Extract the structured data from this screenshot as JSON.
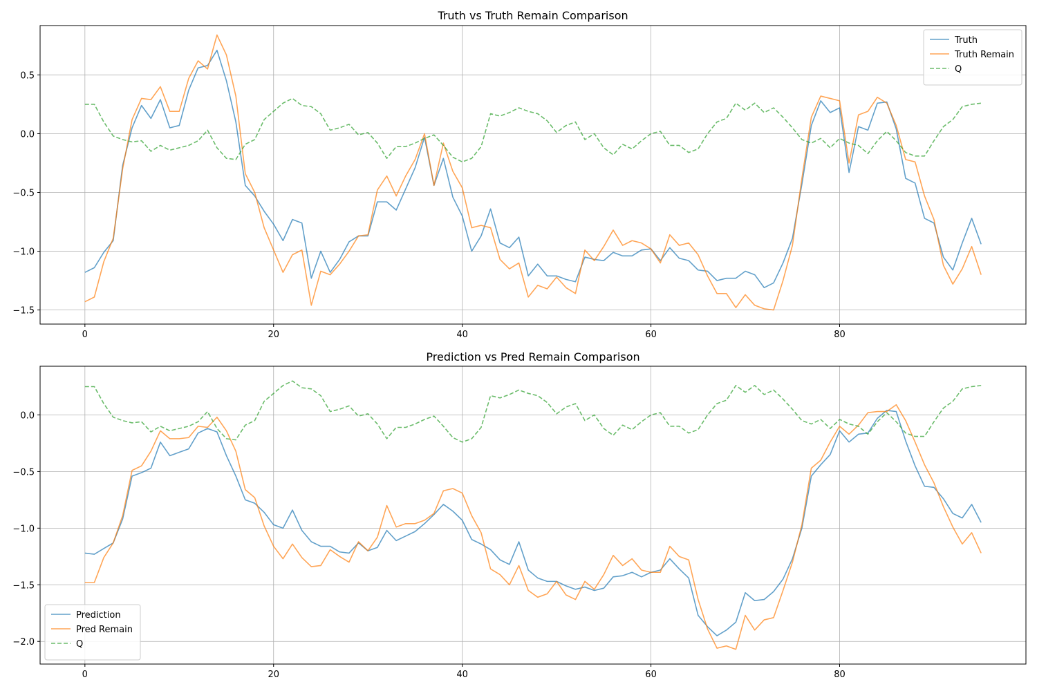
{
  "chart_data": [
    {
      "type": "line",
      "title": "Truth vs Truth Remain Comparison",
      "xlabel": "",
      "ylabel": "",
      "xlim": [
        -4.75,
        99.75
      ],
      "ylim": [
        -1.62,
        0.92
      ],
      "xticks": [
        0,
        20,
        40,
        60,
        80
      ],
      "yticks": [
        -1.5,
        -1.0,
        -0.5,
        0.0,
        0.5
      ],
      "grid": true,
      "legend_position": "upper-right",
      "series": [
        {
          "name": "Truth",
          "color": "#1f77b4",
          "dash": "solid",
          "values": [
            -1.18,
            -1.14,
            -1.01,
            -0.91,
            -0.27,
            0.05,
            0.24,
            0.13,
            0.29,
            0.05,
            0.07,
            0.37,
            0.56,
            0.58,
            0.71,
            0.45,
            0.1,
            -0.44,
            -0.53,
            -0.66,
            -0.77,
            -0.91,
            -0.73,
            -0.76,
            -1.23,
            -1.0,
            -1.18,
            -1.07,
            -0.92,
            -0.87,
            -0.87,
            -0.58,
            -0.58,
            -0.65,
            -0.47,
            -0.29,
            -0.03,
            -0.44,
            -0.21,
            -0.54,
            -0.7,
            -1.0,
            -0.87,
            -0.64,
            -0.93,
            -0.97,
            -0.88,
            -1.21,
            -1.11,
            -1.21,
            -1.21,
            -1.24,
            -1.26,
            -1.05,
            -1.07,
            -1.08,
            -1.01,
            -1.04,
            -1.04,
            -0.99,
            -0.98,
            -1.08,
            -0.97,
            -1.06,
            -1.08,
            -1.16,
            -1.17,
            -1.25,
            -1.23,
            -1.23,
            -1.17,
            -1.2,
            -1.31,
            -1.27,
            -1.1,
            -0.89,
            -0.43,
            0.07,
            0.28,
            0.18,
            0.22,
            -0.33,
            0.06,
            0.03,
            0.26,
            0.27,
            0.04,
            -0.38,
            -0.42,
            -0.72,
            -0.76,
            -1.05,
            -1.16,
            -0.93,
            -0.72,
            -0.94
          ]
        },
        {
          "name": "Truth Remain",
          "color": "#ff7f0e",
          "dash": "solid",
          "values": [
            -1.43,
            -1.39,
            -1.09,
            -0.89,
            -0.3,
            0.12,
            0.3,
            0.29,
            0.4,
            0.19,
            0.19,
            0.47,
            0.62,
            0.55,
            0.84,
            0.67,
            0.32,
            -0.34,
            -0.5,
            -0.8,
            -0.99,
            -1.18,
            -1.03,
            -0.99,
            -1.46,
            -1.17,
            -1.2,
            -1.11,
            -1.0,
            -0.87,
            -0.86,
            -0.48,
            -0.36,
            -0.53,
            -0.36,
            -0.22,
            0.0,
            -0.44,
            -0.08,
            -0.32,
            -0.46,
            -0.8,
            -0.78,
            -0.8,
            -1.07,
            -1.15,
            -1.1,
            -1.39,
            -1.29,
            -1.32,
            -1.22,
            -1.31,
            -1.36,
            -0.99,
            -1.08,
            -0.96,
            -0.82,
            -0.95,
            -0.91,
            -0.93,
            -0.98,
            -1.1,
            -0.86,
            -0.95,
            -0.93,
            -1.03,
            -1.21,
            -1.36,
            -1.36,
            -1.48,
            -1.37,
            -1.46,
            -1.49,
            -1.5,
            -1.25,
            -0.95,
            -0.38,
            0.14,
            0.32,
            0.3,
            0.28,
            -0.25,
            0.16,
            0.19,
            0.31,
            0.26,
            0.07,
            -0.22,
            -0.24,
            -0.53,
            -0.73,
            -1.12,
            -1.28,
            -1.15,
            -0.96,
            -1.2
          ]
        },
        {
          "name": "Q",
          "color": "#2ca02c",
          "dash": "dashed",
          "values": [
            0.25,
            0.25,
            0.1,
            -0.02,
            -0.05,
            -0.07,
            -0.06,
            -0.15,
            -0.1,
            -0.14,
            -0.12,
            -0.1,
            -0.06,
            0.03,
            -0.12,
            -0.21,
            -0.22,
            -0.09,
            -0.05,
            0.12,
            0.19,
            0.26,
            0.3,
            0.24,
            0.23,
            0.17,
            0.03,
            0.05,
            0.08,
            -0.01,
            0.01,
            -0.08,
            -0.21,
            -0.11,
            -0.11,
            -0.08,
            -0.04,
            -0.01,
            -0.1,
            -0.2,
            -0.24,
            -0.21,
            -0.11,
            0.17,
            0.15,
            0.18,
            0.22,
            0.19,
            0.17,
            0.11,
            0.01,
            0.07,
            0.1,
            -0.05,
            0.0,
            -0.12,
            -0.18,
            -0.09,
            -0.13,
            -0.06,
            0.0,
            0.02,
            -0.1,
            -0.1,
            -0.16,
            -0.13,
            0.0,
            0.1,
            0.13,
            0.26,
            0.2,
            0.26,
            0.18,
            0.22,
            0.14,
            0.05,
            -0.05,
            -0.08,
            -0.04,
            -0.12,
            -0.04,
            -0.08,
            -0.1,
            -0.17,
            -0.06,
            0.02,
            -0.06,
            -0.16,
            -0.19,
            -0.19,
            -0.06,
            0.06,
            0.12,
            0.23,
            0.25,
            0.26
          ]
        }
      ]
    },
    {
      "type": "line",
      "title": "Prediction vs Pred Remain Comparison",
      "xlabel": "",
      "ylabel": "",
      "xlim": [
        -4.75,
        99.75
      ],
      "ylim": [
        -2.2,
        0.43
      ],
      "xticks": [
        0,
        20,
        40,
        60,
        80
      ],
      "yticks": [
        -2.0,
        -1.5,
        -1.0,
        -0.5,
        0.0
      ],
      "grid": true,
      "legend_position": "lower-left",
      "series": [
        {
          "name": "Prediction",
          "color": "#1f77b4",
          "dash": "solid",
          "values": [
            -1.22,
            -1.23,
            -1.18,
            -1.13,
            -0.92,
            -0.54,
            -0.51,
            -0.47,
            -0.24,
            -0.36,
            -0.33,
            -0.3,
            -0.16,
            -0.12,
            -0.15,
            -0.36,
            -0.54,
            -0.75,
            -0.78,
            -0.86,
            -0.97,
            -1.0,
            -0.84,
            -1.02,
            -1.12,
            -1.16,
            -1.16,
            -1.21,
            -1.22,
            -1.13,
            -1.2,
            -1.17,
            -1.02,
            -1.11,
            -1.07,
            -1.03,
            -0.96,
            -0.88,
            -0.79,
            -0.85,
            -0.93,
            -1.1,
            -1.14,
            -1.19,
            -1.28,
            -1.32,
            -1.12,
            -1.37,
            -1.44,
            -1.47,
            -1.47,
            -1.51,
            -1.54,
            -1.52,
            -1.55,
            -1.53,
            -1.43,
            -1.42,
            -1.39,
            -1.43,
            -1.39,
            -1.37,
            -1.27,
            -1.36,
            -1.44,
            -1.77,
            -1.87,
            -1.95,
            -1.9,
            -1.83,
            -1.57,
            -1.64,
            -1.63,
            -1.56,
            -1.45,
            -1.27,
            -1.0,
            -0.54,
            -0.44,
            -0.35,
            -0.14,
            -0.24,
            -0.17,
            -0.16,
            -0.03,
            0.04,
            0.03,
            -0.23,
            -0.45,
            -0.63,
            -0.64,
            -0.74,
            -0.87,
            -0.91,
            -0.79,
            -0.95
          ]
        },
        {
          "name": "Pred Remain",
          "color": "#ff7f0e",
          "dash": "solid",
          "values": [
            -1.48,
            -1.48,
            -1.26,
            -1.13,
            -0.89,
            -0.49,
            -0.45,
            -0.32,
            -0.14,
            -0.21,
            -0.21,
            -0.2,
            -0.1,
            -0.11,
            -0.02,
            -0.14,
            -0.32,
            -0.66,
            -0.73,
            -0.98,
            -1.16,
            -1.27,
            -1.14,
            -1.26,
            -1.34,
            -1.33,
            -1.19,
            -1.25,
            -1.3,
            -1.12,
            -1.2,
            -1.08,
            -0.8,
            -0.99,
            -0.96,
            -0.96,
            -0.93,
            -0.87,
            -0.67,
            -0.65,
            -0.69,
            -0.89,
            -1.04,
            -1.36,
            -1.41,
            -1.5,
            -1.33,
            -1.55,
            -1.61,
            -1.58,
            -1.47,
            -1.59,
            -1.63,
            -1.47,
            -1.54,
            -1.41,
            -1.24,
            -1.33,
            -1.27,
            -1.37,
            -1.39,
            -1.39,
            -1.16,
            -1.25,
            -1.28,
            -1.63,
            -1.89,
            -2.06,
            -2.04,
            -2.07,
            -1.77,
            -1.9,
            -1.81,
            -1.79,
            -1.55,
            -1.3,
            -0.97,
            -0.47,
            -0.4,
            -0.24,
            -0.1,
            -0.17,
            -0.09,
            0.02,
            0.03,
            0.03,
            0.09,
            -0.05,
            -0.24,
            -0.44,
            -0.6,
            -0.81,
            -0.99,
            -1.14,
            -1.04,
            -1.22
          ]
        },
        {
          "name": "Q",
          "color": "#2ca02c",
          "dash": "dashed",
          "values": [
            0.25,
            0.25,
            0.1,
            -0.02,
            -0.05,
            -0.07,
            -0.06,
            -0.15,
            -0.1,
            -0.14,
            -0.12,
            -0.1,
            -0.06,
            0.03,
            -0.12,
            -0.21,
            -0.22,
            -0.09,
            -0.05,
            0.12,
            0.19,
            0.26,
            0.3,
            0.24,
            0.23,
            0.17,
            0.03,
            0.05,
            0.08,
            -0.01,
            0.01,
            -0.08,
            -0.21,
            -0.11,
            -0.11,
            -0.08,
            -0.04,
            -0.01,
            -0.1,
            -0.2,
            -0.24,
            -0.21,
            -0.11,
            0.17,
            0.15,
            0.18,
            0.22,
            0.19,
            0.17,
            0.11,
            0.01,
            0.07,
            0.1,
            -0.05,
            0.0,
            -0.12,
            -0.18,
            -0.09,
            -0.13,
            -0.06,
            0.0,
            0.02,
            -0.1,
            -0.1,
            -0.16,
            -0.13,
            0.0,
            0.1,
            0.13,
            0.26,
            0.2,
            0.26,
            0.18,
            0.22,
            0.14,
            0.05,
            -0.05,
            -0.08,
            -0.04,
            -0.12,
            -0.04,
            -0.08,
            -0.1,
            -0.17,
            -0.06,
            0.02,
            -0.06,
            -0.16,
            -0.19,
            -0.19,
            -0.06,
            0.06,
            0.12,
            0.23,
            0.25,
            0.26
          ]
        }
      ]
    }
  ]
}
